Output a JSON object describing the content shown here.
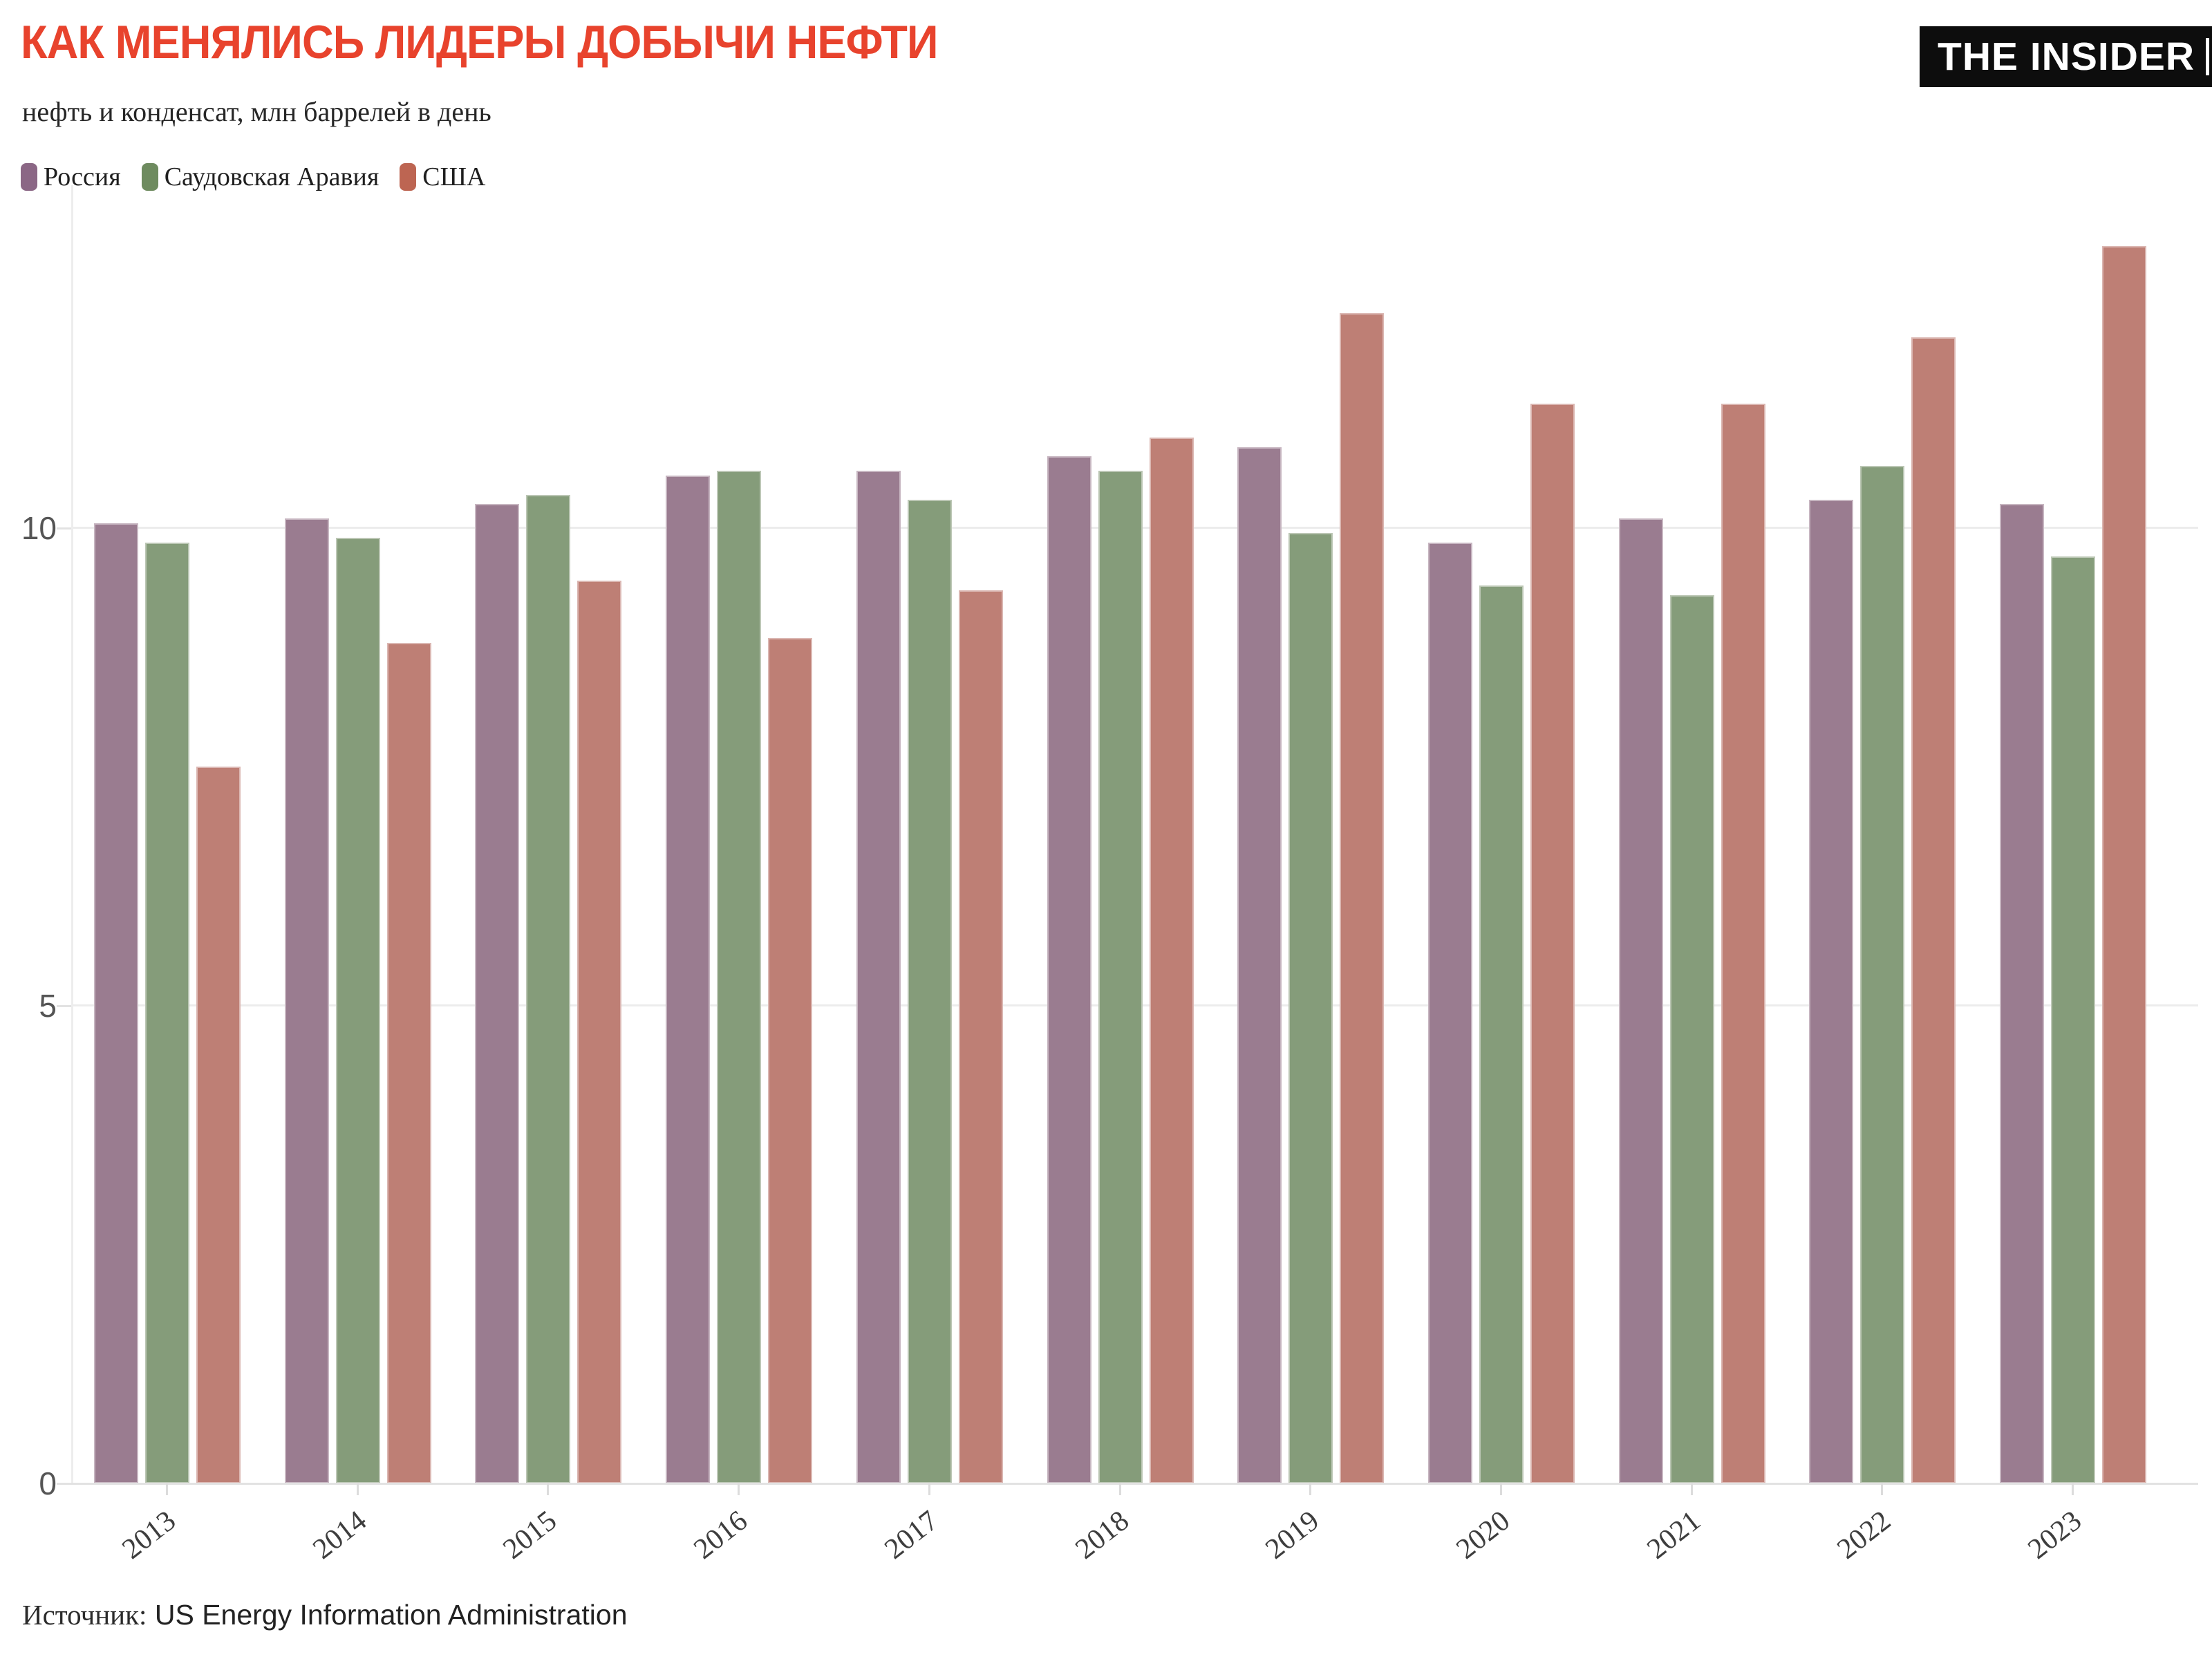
{
  "header": {
    "title": "КАК МЕНЯЛИСЬ ЛИДЕРЫ ДОБЫЧИ НЕФТИ",
    "subtitle": "нефть и конденсат, млн баррелей в день",
    "logo": "THE INSIDER",
    "title_color": "#e8432d",
    "logo_bg": "#0d0d0d"
  },
  "chart_data": {
    "type": "bar",
    "title": "КАК МЕНЯЛИСЬ ЛИДЕРЫ ДОБЫЧИ НЕФТИ",
    "subtitle": "нефть и конденсат, млн баррелей в день",
    "xlabel": "",
    "ylabel": "млн баррелей в день",
    "categories": [
      "2013",
      "2014",
      "2015",
      "2016",
      "2017",
      "2018",
      "2019",
      "2020",
      "2021",
      "2022",
      "2023"
    ],
    "series": [
      {
        "name": "Россия",
        "color": "#8b6785",
        "bar_color": "#9a7c90",
        "values": [
          10.05,
          10.1,
          10.25,
          10.55,
          10.6,
          10.75,
          10.85,
          9.85,
          10.1,
          10.3,
          10.25
        ]
      },
      {
        "name": "Саудовская Аравия",
        "color": "#6e8b5f",
        "bar_color": "#859c7a",
        "values": [
          9.85,
          9.9,
          10.35,
          10.6,
          10.3,
          10.6,
          9.95,
          9.4,
          9.3,
          10.65,
          9.7
        ]
      },
      {
        "name": "США",
        "color": "#bd6552",
        "bar_color": "#be7f75",
        "values": [
          7.5,
          8.8,
          9.45,
          8.85,
          9.35,
          10.95,
          12.25,
          11.3,
          11.3,
          12.0,
          12.95
        ]
      }
    ],
    "ylim": [
      0,
      13.6
    ],
    "yticks": [
      0,
      5,
      10
    ],
    "ytick_labels": [
      "0",
      "5",
      "10"
    ],
    "grid": "horizontal",
    "legend_position": "top-left"
  },
  "footer": {
    "source_label": "Источник:",
    "source_value": "US Energy Information Administration"
  }
}
